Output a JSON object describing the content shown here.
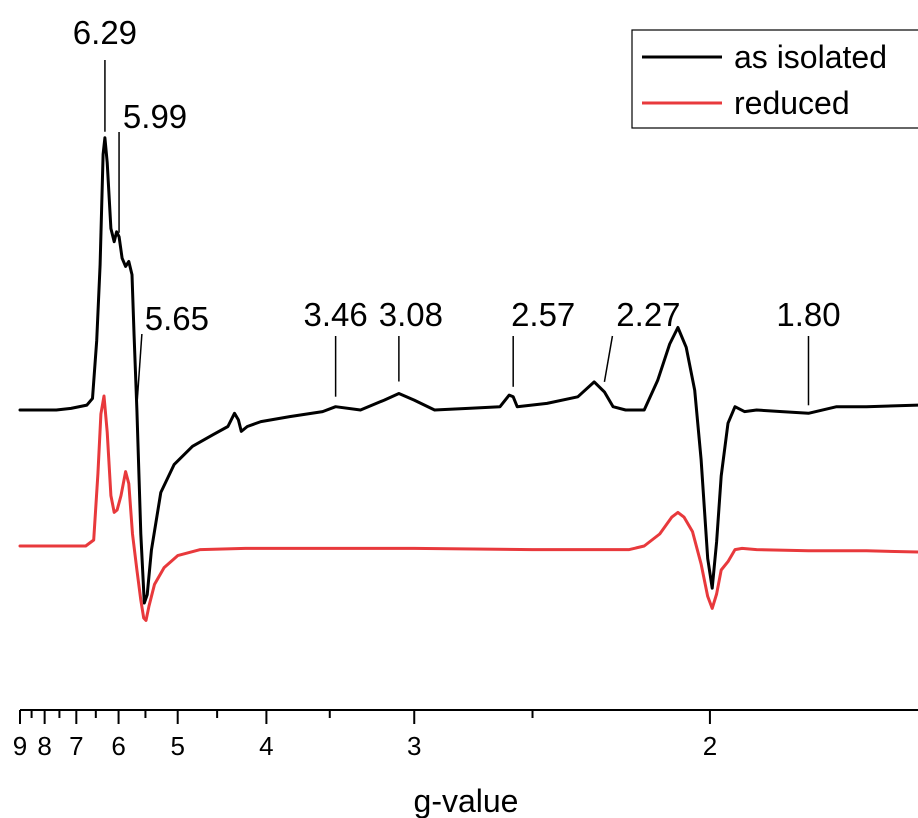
{
  "chart_data": {
    "type": "line",
    "title": "",
    "xlabel": "g-value",
    "ylabel": "",
    "x_scale": "reciprocal",
    "xlim": [
      9,
      1.62
    ],
    "x_ticks_major": [
      9,
      8,
      7,
      6,
      5,
      4,
      3,
      2
    ],
    "x_tick_labels": [
      "9",
      "8",
      "7",
      "6",
      "5",
      "4",
      "3",
      "2"
    ],
    "x_ticks_minor": [
      8.5,
      7.5,
      6.5,
      5.5,
      4.5,
      3.5,
      2.5
    ],
    "y_axis_visible": false,
    "grid": false,
    "legend_position": "top-right",
    "series": [
      {
        "name": "as isolated",
        "color": "#000000",
        "points": [
          [
            9.0,
            0.0
          ],
          [
            7.6,
            0.0
          ],
          [
            7.15,
            0.01
          ],
          [
            6.72,
            0.03
          ],
          [
            6.58,
            0.07
          ],
          [
            6.48,
            0.42
          ],
          [
            6.4,
            0.88
          ],
          [
            6.33,
            1.55
          ],
          [
            6.29,
            1.65
          ],
          [
            6.24,
            1.5
          ],
          [
            6.16,
            1.1
          ],
          [
            6.09,
            1.02
          ],
          [
            6.04,
            1.08
          ],
          [
            5.99,
            1.05
          ],
          [
            5.93,
            0.92
          ],
          [
            5.86,
            0.87
          ],
          [
            5.8,
            0.9
          ],
          [
            5.74,
            0.82
          ],
          [
            5.7,
            0.45
          ],
          [
            5.65,
            0.0
          ],
          [
            5.58,
            -0.75
          ],
          [
            5.52,
            -1.17
          ],
          [
            5.47,
            -1.12
          ],
          [
            5.4,
            -0.85
          ],
          [
            5.25,
            -0.5
          ],
          [
            5.05,
            -0.33
          ],
          [
            4.8,
            -0.22
          ],
          [
            4.55,
            -0.15
          ],
          [
            4.38,
            -0.1
          ],
          [
            4.31,
            -0.02
          ],
          [
            4.27,
            -0.06
          ],
          [
            4.24,
            -0.13
          ],
          [
            4.18,
            -0.1
          ],
          [
            4.05,
            -0.07
          ],
          [
            3.8,
            -0.04
          ],
          [
            3.55,
            -0.01
          ],
          [
            3.46,
            0.02
          ],
          [
            3.3,
            0.0
          ],
          [
            3.16,
            0.06
          ],
          [
            3.08,
            0.1
          ],
          [
            3.0,
            0.06
          ],
          [
            2.9,
            0.0
          ],
          [
            2.75,
            0.01
          ],
          [
            2.62,
            0.02
          ],
          [
            2.585,
            0.09
          ],
          [
            2.57,
            0.08
          ],
          [
            2.555,
            0.02
          ],
          [
            2.45,
            0.04
          ],
          [
            2.35,
            0.08
          ],
          [
            2.3,
            0.17
          ],
          [
            2.27,
            0.11
          ],
          [
            2.245,
            0.02
          ],
          [
            2.21,
            0.0
          ],
          [
            2.16,
            0.0
          ],
          [
            2.125,
            0.18
          ],
          [
            2.095,
            0.4
          ],
          [
            2.075,
            0.5
          ],
          [
            2.055,
            0.38
          ],
          [
            2.035,
            0.12
          ],
          [
            2.02,
            -0.3
          ],
          [
            2.005,
            -0.9
          ],
          [
            1.995,
            -1.08
          ],
          [
            1.985,
            -0.8
          ],
          [
            1.975,
            -0.4
          ],
          [
            1.96,
            -0.08
          ],
          [
            1.945,
            0.02
          ],
          [
            1.925,
            -0.01
          ],
          [
            1.9,
            0.0
          ],
          [
            1.85,
            -0.01
          ],
          [
            1.8,
            -0.02
          ],
          [
            1.75,
            0.02
          ],
          [
            1.7,
            0.02
          ],
          [
            1.62,
            0.03
          ]
        ]
      },
      {
        "name": "reduced",
        "color": "#e8393c",
        "points": [
          [
            9.0,
            0.0
          ],
          [
            7.2,
            0.0
          ],
          [
            6.75,
            0.0
          ],
          [
            6.55,
            0.05
          ],
          [
            6.45,
            0.6
          ],
          [
            6.38,
            1.1
          ],
          [
            6.31,
            1.25
          ],
          [
            6.24,
            0.95
          ],
          [
            6.16,
            0.42
          ],
          [
            6.09,
            0.28
          ],
          [
            6.03,
            0.3
          ],
          [
            5.95,
            0.42
          ],
          [
            5.86,
            0.62
          ],
          [
            5.8,
            0.52
          ],
          [
            5.73,
            0.1
          ],
          [
            5.65,
            -0.2
          ],
          [
            5.58,
            -0.45
          ],
          [
            5.53,
            -0.6
          ],
          [
            5.49,
            -0.62
          ],
          [
            5.44,
            -0.5
          ],
          [
            5.35,
            -0.32
          ],
          [
            5.2,
            -0.18
          ],
          [
            5.0,
            -0.08
          ],
          [
            4.7,
            -0.03
          ],
          [
            4.2,
            -0.02
          ],
          [
            3.5,
            -0.02
          ],
          [
            3.0,
            -0.02
          ],
          [
            2.5,
            -0.03
          ],
          [
            2.2,
            -0.03
          ],
          [
            2.16,
            0.0
          ],
          [
            2.12,
            0.1
          ],
          [
            2.09,
            0.24
          ],
          [
            2.075,
            0.28
          ],
          [
            2.06,
            0.24
          ],
          [
            2.04,
            0.12
          ],
          [
            2.02,
            -0.15
          ],
          [
            2.005,
            -0.42
          ],
          [
            1.995,
            -0.52
          ],
          [
            1.985,
            -0.4
          ],
          [
            1.975,
            -0.2
          ],
          [
            1.96,
            -0.13
          ],
          [
            1.945,
            -0.03
          ],
          [
            1.93,
            -0.02
          ],
          [
            1.9,
            -0.03
          ],
          [
            1.8,
            -0.04
          ],
          [
            1.7,
            -0.04
          ],
          [
            1.62,
            -0.05
          ]
        ]
      }
    ],
    "annotations": [
      {
        "label": "6.29",
        "g": 6.29,
        "series": 0
      },
      {
        "label": "5.99",
        "g": 5.99,
        "series": 0
      },
      {
        "label": "5.65",
        "g": 5.65,
        "series": 0
      },
      {
        "label": "3.46",
        "g": 3.46,
        "series": 0
      },
      {
        "label": "3.08",
        "g": 3.08,
        "series": 0
      },
      {
        "label": "2.57",
        "g": 2.57,
        "series": 0
      },
      {
        "label": "2.27",
        "g": 2.27,
        "series": 0
      },
      {
        "label": "1.80",
        "g": 1.8,
        "series": 0
      }
    ]
  }
}
